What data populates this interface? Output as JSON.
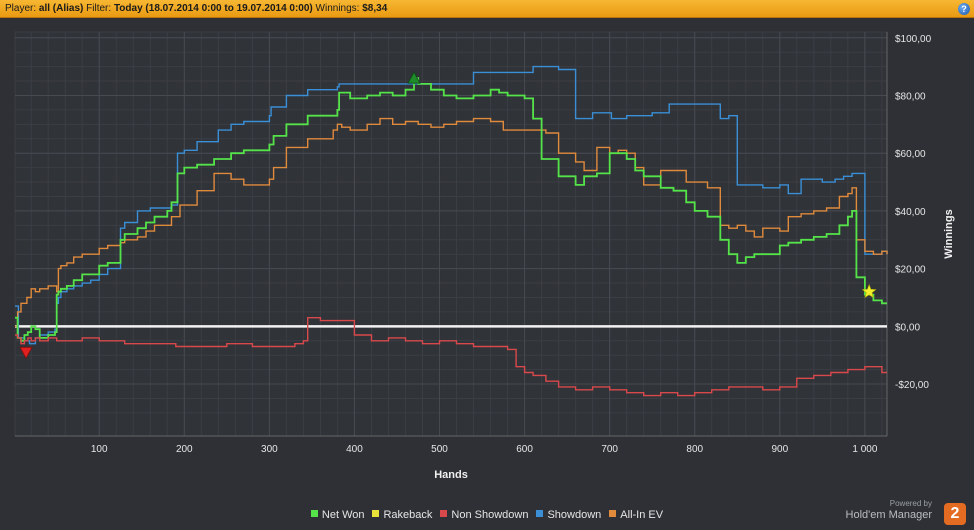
{
  "header": {
    "player_label": "Player:",
    "player_value": "all (Alias)",
    "filter_label": "Filter:",
    "filter_value": "Today (18.07.2014 0:00 to 19.07.2014 0:00)",
    "winnings_label": "Winnings:",
    "winnings_value": "$8,34",
    "help_label": "?"
  },
  "brand": {
    "powered": "Powered by",
    "name": "Hold'em Manager",
    "logo": "2"
  },
  "chart_data": {
    "type": "line",
    "xlabel": "Hands",
    "ylabel": "Winnings",
    "xlim": [
      1,
      1026
    ],
    "ylim": [
      -38,
      102
    ],
    "x_ticks": [
      100,
      200,
      300,
      400,
      500,
      600,
      700,
      800,
      900,
      1000
    ],
    "x_tick_labels": [
      "100",
      "200",
      "300",
      "400",
      "500",
      "600",
      "700",
      "800",
      "900",
      "1 000"
    ],
    "y_ticks": [
      -20,
      0,
      20,
      40,
      60,
      80,
      100
    ],
    "y_tick_labels": [
      "-$20,00",
      "$0,00",
      "$20,00",
      "$40,00",
      "$60,00",
      "$80,00",
      "$100,00"
    ],
    "grid": true,
    "zero_line": 0,
    "legend_position": "bottom-center",
    "series": [
      {
        "name": "Showdown",
        "color": "#3a8fd6",
        "x": [
          1,
          5,
          12,
          18,
          25,
          30,
          40,
          48,
          50,
          52,
          55,
          62,
          70,
          80,
          90,
          100,
          110,
          125,
          130,
          145,
          160,
          185,
          192,
          200,
          215,
          240,
          255,
          270,
          300,
          302,
          320,
          345,
          380,
          382,
          420,
          440,
          470,
          480,
          500,
          530,
          540,
          560,
          590,
          600,
          610,
          640,
          660,
          680,
          690,
          702,
          710,
          720,
          750,
          770,
          800,
          830,
          840,
          850,
          870,
          880,
          900,
          910,
          925,
          935,
          950,
          965,
          975,
          985,
          1000,
          1010,
          1020,
          1026
        ],
        "y": [
          7,
          -4,
          -5,
          -6,
          -4,
          -3,
          -2,
          -1,
          8,
          10,
          12,
          13,
          14,
          15,
          16,
          18,
          20,
          34,
          36,
          40,
          41,
          42,
          60,
          61,
          64,
          68,
          70,
          71,
          73,
          76,
          80,
          82,
          83,
          84,
          84,
          84,
          84,
          84,
          84,
          84,
          88,
          88,
          88,
          88,
          90,
          89,
          72,
          74,
          74,
          72,
          72,
          73,
          74,
          77,
          77,
          72,
          73,
          49,
          49,
          48,
          49,
          46,
          51,
          51,
          50,
          51,
          52,
          53,
          25,
          25,
          26,
          25
        ]
      },
      {
        "name": "All-In EV",
        "color": "#e08a3c",
        "x": [
          1,
          4,
          8,
          15,
          20,
          25,
          30,
          40,
          50,
          52,
          55,
          62,
          70,
          80,
          100,
          110,
          125,
          130,
          145,
          155,
          165,
          185,
          195,
          215,
          235,
          255,
          270,
          300,
          305,
          320,
          345,
          375,
          380,
          385,
          395,
          415,
          430,
          445,
          460,
          475,
          490,
          505,
          520,
          540,
          560,
          570,
          575,
          590,
          600,
          610,
          625,
          640,
          660,
          670,
          685,
          700,
          710,
          720,
          730,
          740,
          760,
          775,
          790,
          800,
          815,
          830,
          840,
          850,
          860,
          870,
          880,
          900,
          910,
          925,
          940,
          955,
          970,
          980,
          985,
          990,
          1000,
          1010,
          1020,
          1026
        ],
        "y": [
          0,
          5,
          8,
          10,
          13,
          12,
          13,
          14,
          12,
          20,
          21,
          22,
          24,
          25,
          27,
          28,
          29,
          30,
          31,
          33,
          35,
          38,
          42,
          47,
          53,
          51,
          49,
          51,
          55,
          62,
          65,
          68,
          70,
          69,
          68,
          70,
          72,
          70,
          71,
          70,
          69,
          70,
          71,
          72,
          71,
          71,
          68,
          68,
          68,
          68,
          67,
          60,
          57,
          54,
          62,
          60,
          61,
          60,
          55,
          49,
          54,
          54,
          50,
          50,
          48,
          35,
          34,
          35,
          33,
          31,
          34,
          33,
          38,
          39,
          40,
          41,
          45,
          46,
          48,
          30,
          26,
          25,
          26,
          25
        ]
      },
      {
        "name": "Net Won",
        "color": "#55e34a",
        "x": [
          1,
          4,
          8,
          12,
          16,
          20,
          25,
          30,
          40,
          48,
          50,
          52,
          55,
          62,
          70,
          80,
          100,
          110,
          125,
          130,
          145,
          155,
          165,
          180,
          185,
          192,
          200,
          215,
          235,
          255,
          270,
          300,
          305,
          320,
          345,
          380,
          382,
          395,
          415,
          430,
          445,
          460,
          470,
          475,
          490,
          505,
          520,
          540,
          560,
          570,
          580,
          590,
          600,
          610,
          620,
          640,
          660,
          670,
          685,
          700,
          710,
          720,
          730,
          740,
          760,
          775,
          790,
          800,
          815,
          830,
          840,
          850,
          860,
          870,
          880,
          900,
          910,
          925,
          940,
          955,
          970,
          980,
          985,
          990,
          1000,
          1010,
          1020,
          1026
        ],
        "y": [
          3,
          -4,
          -5,
          -3,
          -2,
          0,
          -1,
          -4,
          -3,
          -2,
          11,
          12,
          13,
          14,
          16,
          18,
          21,
          22,
          30,
          32,
          34,
          36,
          38,
          40,
          43,
          53,
          55,
          56,
          58,
          60,
          61,
          63,
          66,
          70,
          73,
          75,
          81,
          79,
          80,
          81,
          80,
          82,
          86,
          84,
          82,
          80,
          79,
          80,
          82,
          81,
          80,
          80,
          79,
          72,
          58,
          52,
          49,
          52,
          53,
          60,
          60,
          58,
          54,
          52,
          48,
          47,
          43,
          40,
          38,
          30,
          25,
          22,
          24,
          25,
          25,
          28,
          29,
          30,
          31,
          32,
          35,
          38,
          40,
          17,
          11,
          9,
          8,
          8
        ]
      },
      {
        "name": "Non Showdown",
        "color": "#d9494b",
        "x": [
          1,
          4,
          8,
          12,
          16,
          20,
          25,
          30,
          40,
          50,
          60,
          80,
          100,
          130,
          160,
          190,
          220,
          250,
          280,
          300,
          330,
          340,
          345,
          360,
          380,
          400,
          420,
          440,
          460,
          480,
          500,
          520,
          540,
          560,
          580,
          590,
          600,
          610,
          625,
          640,
          660,
          680,
          700,
          720,
          740,
          760,
          780,
          800,
          820,
          840,
          860,
          880,
          900,
          920,
          940,
          960,
          980,
          1000,
          1020,
          1026
        ],
        "y": [
          -3,
          -4,
          -6,
          -5,
          -4,
          -5,
          -4,
          -5,
          -4,
          -5,
          -5,
          -4,
          -5,
          -6,
          -6,
          -7,
          -7,
          -6,
          -7,
          -7,
          -6,
          -5,
          3,
          2,
          2,
          -3,
          -5,
          -4,
          -5,
          -6,
          -5,
          -6,
          -7,
          -7,
          -8,
          -14,
          -16,
          -17,
          -19,
          -21,
          -22,
          -21,
          -22,
          -23,
          -24,
          -23,
          -24,
          -23,
          -22,
          -21,
          -21,
          -22,
          -21,
          -18,
          -17,
          -16,
          -15,
          -14,
          -16,
          -16
        ]
      },
      {
        "name": "Rakeback",
        "color": "#e8e23a",
        "x": [],
        "y": []
      }
    ],
    "markers": [
      {
        "name": "max-marker",
        "shape": "triangle-up",
        "color": "#1f8a2a",
        "x": 470,
        "y": 86
      },
      {
        "name": "min-marker",
        "shape": "triangle-down",
        "color": "#e02020",
        "x": 14,
        "y": -9
      },
      {
        "name": "final-marker",
        "shape": "star",
        "color": "#f2ef2e",
        "x": 1005,
        "y": 12
      }
    ]
  }
}
